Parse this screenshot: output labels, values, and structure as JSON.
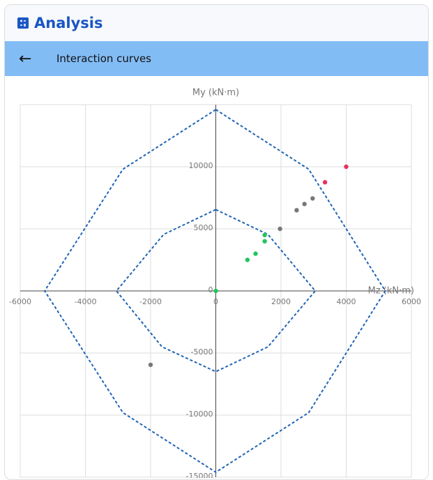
{
  "header": {
    "title": "Analysis"
  },
  "toolbar": {
    "back": "←",
    "title": "Interaction curves"
  },
  "chart_data": {
    "type": "scatter",
    "xlabel": "Mz (kN·m)",
    "ylabel": "My (kN·m)",
    "xlim": [
      -6000,
      6000
    ],
    "ylim": [
      -15000,
      15000
    ],
    "xticks": [
      -6000,
      -4000,
      -2000,
      0,
      2000,
      4000,
      6000
    ],
    "yticks": [
      -15000,
      -10000,
      -5000,
      0,
      5000,
      10000
    ],
    "grid": true,
    "curves": [
      {
        "color": "#1f64b4",
        "x": [
          0,
          2850,
          5200,
          2850,
          0,
          -2850,
          -5250,
          -2850,
          0
        ],
        "y": [
          14600,
          9800,
          0,
          -9800,
          -14600,
          -9800,
          0,
          9800,
          14600
        ]
      },
      {
        "color": "#1f64b4",
        "x": [
          0,
          1600,
          3050,
          1600,
          0,
          -1650,
          -3050,
          -1600,
          0
        ],
        "y": [
          6550,
          4550,
          0,
          -4500,
          -6500,
          -4500,
          0,
          4550,
          6550
        ]
      }
    ],
    "series": [
      {
        "color": "#e8315a",
        "x": [
          4000,
          3350
        ],
        "values": [
          10000,
          8750
        ]
      },
      {
        "color": "#777777",
        "x": [
          2970,
          2720,
          2480,
          1970,
          -2000
        ],
        "values": [
          7450,
          7000,
          6500,
          5000,
          -5950
        ]
      },
      {
        "color": "#21c45d",
        "x": [
          1500,
          1500,
          1220,
          970,
          0
        ],
        "values": [
          4500,
          4000,
          3000,
          2500,
          0
        ]
      }
    ]
  }
}
